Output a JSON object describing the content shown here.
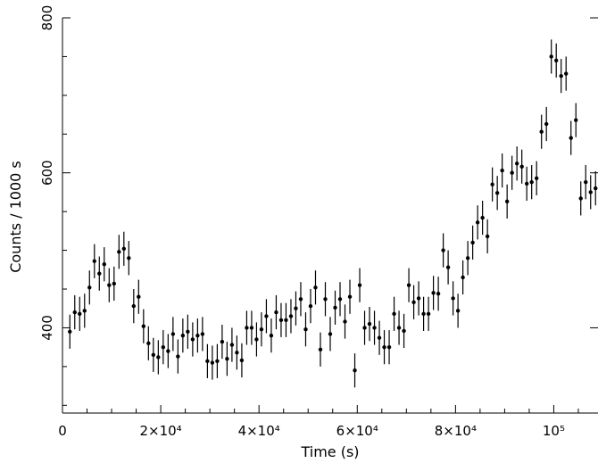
{
  "chart_data": {
    "type": "scatter",
    "title": "",
    "xlabel": "Time (s)",
    "ylabel": "Counts / 1000 s",
    "xlim": [
      0,
      109000
    ],
    "ylim": [
      290,
      800
    ],
    "x_ticks": [
      {
        "value": 0,
        "label": "0"
      },
      {
        "value": 20000,
        "label": "2×10⁴"
      },
      {
        "value": 40000,
        "label": "4×10⁴"
      },
      {
        "value": 60000,
        "label": "6×10⁴"
      },
      {
        "value": 80000,
        "label": "8×10⁴"
      },
      {
        "value": 100000,
        "label": "10⁵"
      }
    ],
    "y_ticks": [
      {
        "value": 400,
        "label": "400"
      },
      {
        "value": 600,
        "label": "600"
      },
      {
        "value": 800,
        "label": "800"
      }
    ],
    "error_half_width": 22,
    "grid": false,
    "legend": "none",
    "series": [
      {
        "points": [
          [
            1500,
            395
          ],
          [
            2500,
            420
          ],
          [
            3500,
            418
          ],
          [
            4500,
            422
          ],
          [
            5500,
            452
          ],
          [
            6500,
            486
          ],
          [
            7500,
            470
          ],
          [
            8500,
            482
          ],
          [
            9500,
            455
          ],
          [
            10500,
            457
          ],
          [
            11500,
            498
          ],
          [
            12500,
            502
          ],
          [
            13500,
            490
          ],
          [
            14500,
            428
          ],
          [
            15500,
            440
          ],
          [
            16500,
            402
          ],
          [
            17500,
            380
          ],
          [
            18500,
            365
          ],
          [
            19500,
            362
          ],
          [
            20500,
            375
          ],
          [
            21500,
            370
          ],
          [
            22500,
            392
          ],
          [
            23500,
            363
          ],
          [
            24500,
            390
          ],
          [
            25500,
            395
          ],
          [
            26500,
            385
          ],
          [
            27500,
            390
          ],
          [
            28500,
            392
          ],
          [
            29500,
            357
          ],
          [
            30500,
            355
          ],
          [
            31500,
            357
          ],
          [
            32500,
            382
          ],
          [
            33500,
            360
          ],
          [
            34500,
            378
          ],
          [
            35500,
            368
          ],
          [
            36500,
            358
          ],
          [
            37500,
            400
          ],
          [
            38500,
            400
          ],
          [
            39500,
            385
          ],
          [
            40500,
            398
          ],
          [
            41500,
            415
          ],
          [
            42500,
            390
          ],
          [
            43500,
            420
          ],
          [
            44500,
            410
          ],
          [
            45500,
            410
          ],
          [
            46500,
            415
          ],
          [
            47500,
            425
          ],
          [
            48500,
            437
          ],
          [
            49500,
            398
          ],
          [
            50500,
            428
          ],
          [
            51500,
            452
          ],
          [
            52500,
            372
          ],
          [
            53500,
            437
          ],
          [
            54500,
            392
          ],
          [
            55500,
            426
          ],
          [
            56500,
            437
          ],
          [
            57500,
            408
          ],
          [
            58500,
            440
          ],
          [
            59500,
            345
          ],
          [
            60500,
            455
          ],
          [
            61500,
            400
          ],
          [
            62500,
            405
          ],
          [
            63500,
            400
          ],
          [
            64500,
            387
          ],
          [
            65500,
            375
          ],
          [
            66500,
            375
          ],
          [
            67500,
            418
          ],
          [
            68500,
            400
          ],
          [
            69500,
            396
          ],
          [
            70500,
            455
          ],
          [
            71500,
            433
          ],
          [
            72500,
            438
          ],
          [
            73500,
            418
          ],
          [
            74500,
            418
          ],
          [
            75500,
            445
          ],
          [
            76500,
            444
          ],
          [
            77500,
            500
          ],
          [
            78500,
            478
          ],
          [
            79500,
            438
          ],
          [
            80500,
            422
          ],
          [
            81500,
            465
          ],
          [
            82500,
            490
          ],
          [
            83500,
            510
          ],
          [
            84500,
            536
          ],
          [
            85500,
            542
          ],
          [
            86500,
            518
          ],
          [
            87500,
            585
          ],
          [
            88500,
            574
          ],
          [
            89500,
            603
          ],
          [
            90500,
            563
          ],
          [
            91500,
            600
          ],
          [
            92500,
            612
          ],
          [
            93500,
            608
          ],
          [
            94500,
            586
          ],
          [
            95500,
            588
          ],
          [
            96500,
            593
          ],
          [
            97500,
            653
          ],
          [
            98500,
            663
          ],
          [
            99500,
            750
          ],
          [
            100500,
            745
          ],
          [
            101500,
            725
          ],
          [
            102500,
            728
          ],
          [
            103500,
            645
          ],
          [
            104500,
            668
          ],
          [
            105500,
            567
          ],
          [
            106500,
            588
          ],
          [
            107500,
            575
          ],
          [
            108500,
            580
          ]
        ]
      }
    ]
  }
}
